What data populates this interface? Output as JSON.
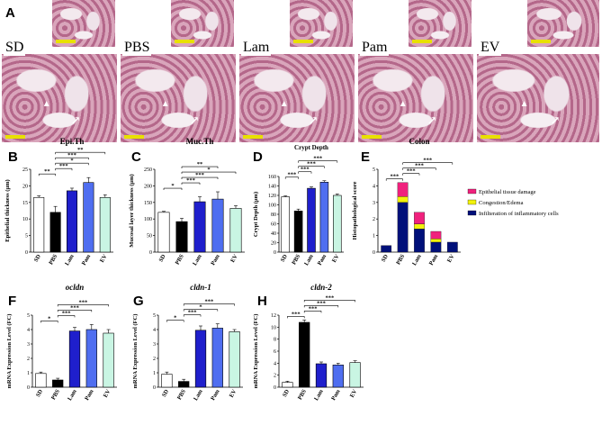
{
  "panel_a": {
    "letter": "A",
    "groups": [
      "SD",
      "PBS",
      "Lam",
      "Pam",
      "EV"
    ]
  },
  "chart_data": [
    {
      "id": "B",
      "letter": "B",
      "type": "bar",
      "title": "Epi.Th",
      "ylabel": "Epithelial thickness (μm)",
      "categories": [
        "SD",
        "PBS",
        "Lam",
        "Pam",
        "EV"
      ],
      "values": [
        16.5,
        12,
        18.5,
        21,
        16.5
      ],
      "errors": [
        0.5,
        1.8,
        0.8,
        1.5,
        0.8
      ],
      "ylim": [
        0,
        25
      ],
      "yticks": [
        0,
        5,
        10,
        15,
        20,
        25
      ],
      "colors": [
        "#ffffff",
        "#000000",
        "#1f1fcc",
        "#4f6ef0",
        "#c9f5e3"
      ],
      "sig": [
        [
          "**",
          "SD",
          "PBS"
        ],
        [
          "***",
          "PBS",
          "Lam"
        ],
        [
          "*",
          "PBS",
          "Pam"
        ],
        [
          "***",
          "PBS",
          "Pam"
        ],
        [
          "**",
          "PBS",
          "EV"
        ]
      ]
    },
    {
      "id": "C",
      "letter": "C",
      "type": "bar",
      "title": "Muc.Th",
      "ylabel": "Mucosal layer thickness (μm)",
      "categories": [
        "SD",
        "PBS",
        "Lam",
        "Pam",
        "EV"
      ],
      "values": [
        120,
        92,
        152,
        160,
        132
      ],
      "errors": [
        3,
        10,
        15,
        22,
        8
      ],
      "ylim": [
        0,
        250
      ],
      "yticks": [
        0,
        50,
        100,
        150,
        200,
        250
      ],
      "colors": [
        "#ffffff",
        "#000000",
        "#1f1fcc",
        "#4f6ef0",
        "#c9f5e3"
      ],
      "sig": [
        [
          "*",
          "SD",
          "PBS"
        ],
        [
          "***",
          "PBS",
          "Lam"
        ],
        [
          "***",
          "PBS",
          "Pam"
        ],
        [
          "*",
          "PBS",
          "EV"
        ],
        [
          "**",
          "PBS",
          "Pam"
        ]
      ]
    },
    {
      "id": "D",
      "letter": "D",
      "type": "bar",
      "title": "Crypt Depth",
      "ylabel": "Crypt Depth (μm)",
      "categories": [
        "SD",
        "PBS",
        "Lam",
        "Pam",
        "EV"
      ],
      "values": [
        117,
        87,
        135,
        148,
        120
      ],
      "errors": [
        2,
        4,
        3,
        3,
        3
      ],
      "ylim": [
        0,
        160
      ],
      "yticks": [
        0,
        20,
        40,
        60,
        80,
        100,
        120,
        140,
        160
      ],
      "colors": [
        "#ffffff",
        "#000000",
        "#1f1fcc",
        "#4f6ef0",
        "#c9f5e3"
      ],
      "sig": [
        [
          "***",
          "SD",
          "PBS"
        ],
        [
          "***",
          "PBS",
          "Lam"
        ],
        [
          "***",
          "PBS",
          "Pam"
        ],
        [
          "***",
          "PBS",
          "EV"
        ]
      ]
    },
    {
      "id": "E",
      "letter": "E",
      "type": "stacked-bar",
      "title": "Colon",
      "ylabel": "Histopathological score",
      "categories": [
        "SD",
        "PBS",
        "Lam",
        "Pam",
        "EV"
      ],
      "series": [
        {
          "name": "Infilteration of inflammatory cells",
          "color": "#00107a",
          "values": [
            0.4,
            3.0,
            1.4,
            0.6,
            0.6
          ]
        },
        {
          "name": "Congestion/Edema",
          "color": "#f2f20a",
          "values": [
            0,
            0.35,
            0.3,
            0.2,
            0
          ]
        },
        {
          "name": "Epithelial tissue damage",
          "color": "#f0217d",
          "values": [
            0,
            0.85,
            0.7,
            0.45,
            0
          ]
        }
      ],
      "ylim": [
        0,
        5
      ],
      "yticks": [
        0,
        1,
        2,
        3,
        4,
        5
      ],
      "sig": [
        [
          "***",
          "SD",
          "PBS"
        ],
        [
          "***",
          "PBS",
          "Lam"
        ],
        [
          "***",
          "PBS",
          "Pam"
        ],
        [
          "***",
          "PBS",
          "EV"
        ]
      ]
    },
    {
      "id": "F",
      "letter": "F",
      "type": "bar",
      "title": "ocldn",
      "ylabel": "mRNA Expression Level (FC)",
      "categories": [
        "SD",
        "PBS",
        "Lam",
        "Pam",
        "EV"
      ],
      "values": [
        0.95,
        0.5,
        3.9,
        4.0,
        3.75
      ],
      "errors": [
        0.1,
        0.12,
        0.25,
        0.35,
        0.25
      ],
      "ylim": [
        0,
        5
      ],
      "yticks": [
        0,
        1,
        2,
        3,
        4,
        5
      ],
      "colors": [
        "#ffffff",
        "#000000",
        "#1f1fcc",
        "#4f6ef0",
        "#c9f5e3"
      ],
      "sig": [
        [
          "*",
          "SD",
          "PBS"
        ],
        [
          "***",
          "PBS",
          "Lam"
        ],
        [
          "***",
          "PBS",
          "Pam"
        ],
        [
          "***",
          "PBS",
          "EV"
        ]
      ]
    },
    {
      "id": "G",
      "letter": "G",
      "type": "bar",
      "title": "cldn-1",
      "ylabel": "mRNA Expression Level (FC)",
      "categories": [
        "SD",
        "PBS",
        "Lam",
        "Pam",
        "EV"
      ],
      "values": [
        0.9,
        0.4,
        3.95,
        4.1,
        3.85
      ],
      "errors": [
        0.15,
        0.15,
        0.3,
        0.3,
        0.15
      ],
      "ylim": [
        0,
        5
      ],
      "yticks": [
        0,
        1,
        2,
        3,
        4,
        5
      ],
      "colors": [
        "#ffffff",
        "#000000",
        "#1f1fcc",
        "#4f6ef0",
        "#c9f5e3"
      ],
      "sig": [
        [
          "*",
          "SD",
          "PBS"
        ],
        [
          "***",
          "PBS",
          "Lam"
        ],
        [
          "*",
          "PBS",
          "Pam"
        ],
        [
          "***",
          "PBS",
          "EV"
        ]
      ]
    },
    {
      "id": "H",
      "letter": "H",
      "type": "bar",
      "title": "cldn-2",
      "ylabel": "mRNA Expression Level (FC)",
      "categories": [
        "SD",
        "PBS",
        "Lam",
        "Pam",
        "EV"
      ],
      "values": [
        0.8,
        10.8,
        3.9,
        3.7,
        4.1
      ],
      "errors": [
        0.2,
        0.4,
        0.3,
        0.3,
        0.3
      ],
      "ylim": [
        0,
        12
      ],
      "yticks": [
        0,
        2,
        4,
        6,
        8,
        10,
        12
      ],
      "colors": [
        "#ffffff",
        "#000000",
        "#1f1fcc",
        "#4f6ef0",
        "#c9f5e3"
      ],
      "sig": [
        [
          "***",
          "SD",
          "PBS"
        ],
        [
          "***",
          "PBS",
          "Lam"
        ],
        [
          "***",
          "PBS",
          "Pam"
        ],
        [
          "***",
          "PBS",
          "EV"
        ]
      ]
    }
  ]
}
